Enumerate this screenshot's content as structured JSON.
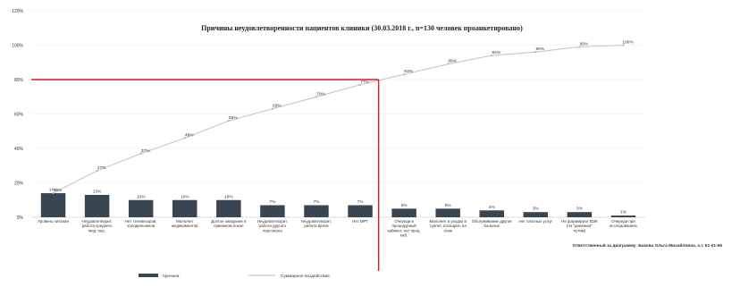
{
  "chart_data": {
    "type": "bar",
    "title": "Причины неудовлетворенности пациентов клиники (30.03.2018 г., n=130 человек проанкетировано)",
    "categories": [
      "Уровень питания",
      "Неудовлетворит. работа среднего мед. пер.",
      "Нет телевизоров, холодильников",
      "Мало/нет медикаментов",
      "Долгое ожидание в приемном покое",
      "Неудовлетворит. работа другого персонала",
      "Неудовлетворит. работа врача",
      "Нет МРТ",
      "Очереди в процедурный кабинет, нет проц. каб.",
      "Мало/нет в уходах в туалет, посещать на этаж",
      "Обслуживание другие больные",
      "Нет платных услуг",
      "Не формируют ВЭК (по \"дневным\" путям)",
      "Очереди при исследованиях"
    ],
    "series": [
      {
        "name": "причина",
        "values": [
          14,
          13,
          10,
          10,
          10,
          7,
          7,
          7,
          5,
          5,
          4,
          3,
          3,
          1
        ],
        "labels": [
          "14%",
          "13%",
          "10%",
          "10%",
          "10%",
          "7%",
          "7%",
          "7%",
          "5%",
          "5%",
          "4%",
          "3%",
          "3%",
          "1%"
        ]
      },
      {
        "name": "Суммарное воздействие",
        "values": [
          14,
          27,
          37,
          46,
          56,
          63,
          70,
          77,
          83,
          89,
          94,
          96,
          99,
          100
        ],
        "labels": [
          "14%",
          "27%",
          "37%",
          "46%",
          "56%",
          "63%",
          "70%",
          "77%",
          "83%",
          "89%",
          "94%",
          "96%",
          "99%",
          "100%"
        ]
      }
    ],
    "y_ticks": [
      "0%",
      "20%",
      "40%",
      "60%",
      "80%",
      "100%",
      "120%"
    ],
    "ylim": [
      0,
      120
    ],
    "threshold": 80,
    "cutoff_category": "Нет МРТ",
    "legend_position": "bottom",
    "note": "Ответственный за диаграмму: Бакова Ольга Михайловна, к.т. 51-01-55",
    "colors": {
      "bars": "#3a4552",
      "cumulative_line": "#c8c8c8",
      "cutoff": "#e0161c"
    }
  }
}
